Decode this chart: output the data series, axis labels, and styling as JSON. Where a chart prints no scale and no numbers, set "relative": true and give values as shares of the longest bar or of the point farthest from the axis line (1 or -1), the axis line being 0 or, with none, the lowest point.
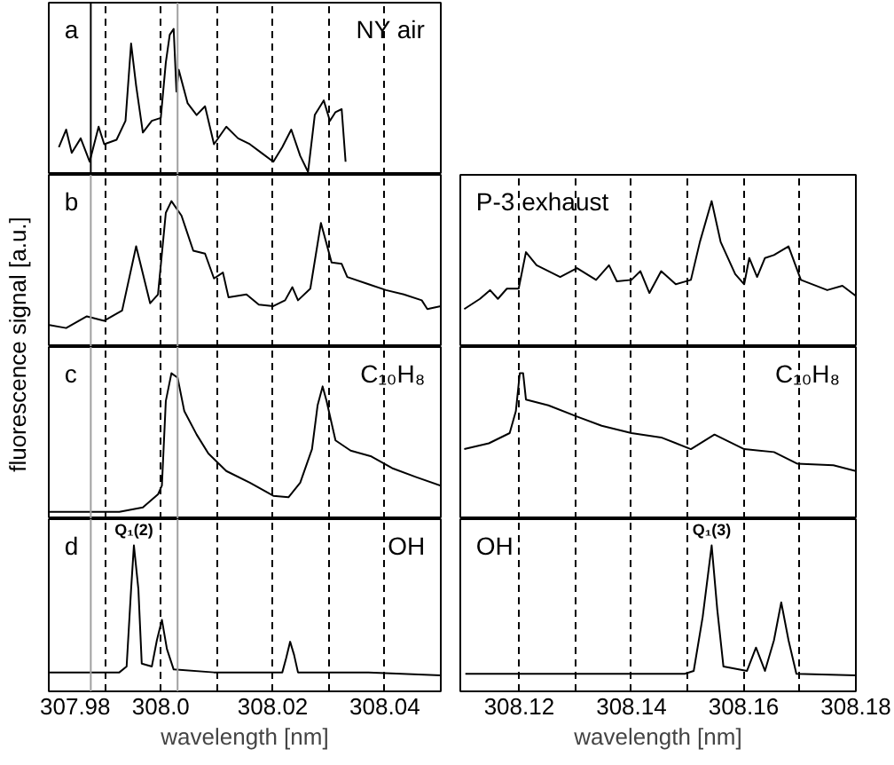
{
  "chart_data": [
    {
      "type": "line",
      "relative": true,
      "grid": "x",
      "tick_labels": false,
      "ylabel": "fluorescence signal [a.u.]",
      "annotations": [
        "a",
        "NY air"
      ],
      "xlim": [
        307.98,
        308.05
      ],
      "xticks": [
        307.98,
        {
          "value": 307.99,
          "label": null
        },
        308.0,
        {
          "value": 308.01,
          "label": null
        },
        308.02,
        {
          "value": 308.03,
          "label": null
        },
        308.04
      ],
      "ref_lines": [
        {
          "axis": "x",
          "value": 307.9875,
          "color": "#000000"
        },
        {
          "axis": "x",
          "value": 308.003,
          "color": "#a0a0a0"
        }
      ],
      "series": [
        {
          "color": "#000000",
          "x": [
            307.9818,
            307.9831,
            307.9841,
            307.9857,
            307.9873,
            307.9889,
            307.9899,
            307.9921,
            307.9937,
            307.9947,
            307.9956,
            307.9968,
            307.9984,
            308.0,
            308.0009,
            308.0016,
            308.0023,
            308.0028,
            308.0032,
            308.0048,
            308.0064,
            308.0079,
            308.0095,
            308.0117,
            308.0138,
            308.0159,
            308.018,
            308.0201,
            308.0217,
            308.0233,
            308.0249,
            308.0263,
            308.0275,
            308.0291,
            308.0302,
            308.0312,
            308.0323,
            308.033
          ],
          "values": [
            0.19,
            0.31,
            0.15,
            0.25,
            0.09,
            0.33,
            0.21,
            0.24,
            0.37,
            0.9,
            0.61,
            0.29,
            0.37,
            0.39,
            0.77,
            0.96,
            1.0,
            0.57,
            0.72,
            0.49,
            0.41,
            0.47,
            0.21,
            0.33,
            0.25,
            0.21,
            0.15,
            0.09,
            0.19,
            0.31,
            0.13,
            0.02,
            0.41,
            0.51,
            0.37,
            0.43,
            0.45,
            0.09
          ]
        }
      ]
    },
    {
      "type": "line",
      "relative": true,
      "grid": "x",
      "tick_labels": false,
      "annotations": [
        "b"
      ],
      "xlim": [
        307.98,
        308.05
      ],
      "xticks": [
        307.98,
        {
          "value": 307.99,
          "label": null
        },
        308.0,
        {
          "value": 308.01,
          "label": null
        },
        308.02,
        {
          "value": 308.03,
          "label": null
        },
        308.04
      ],
      "ref_lines": [
        {
          "axis": "x",
          "value": 307.9875,
          "color": "#a0a0a0"
        },
        {
          "axis": "x",
          "value": 308.003,
          "color": "#a0a0a0"
        }
      ],
      "series": [
        {
          "color": "#000000",
          "x": [
            307.9801,
            307.9831,
            307.9868,
            307.9899,
            307.9931,
            307.9956,
            307.9981,
            307.9995,
            308.0009,
            308.0019,
            308.0037,
            308.0058,
            308.0079,
            308.0095,
            308.0111,
            308.0121,
            308.0153,
            308.0175,
            308.0201,
            308.0222,
            308.0235,
            308.0245,
            308.0267,
            308.0286,
            308.0305,
            308.0323,
            308.0333,
            308.0371,
            308.0402,
            308.0434,
            308.0466,
            308.0476,
            308.05
          ],
          "values": [
            0.15,
            0.13,
            0.21,
            0.18,
            0.25,
            0.69,
            0.3,
            0.36,
            0.92,
            1.0,
            0.9,
            0.66,
            0.64,
            0.47,
            0.51,
            0.34,
            0.36,
            0.29,
            0.28,
            0.32,
            0.41,
            0.32,
            0.4,
            0.85,
            0.58,
            0.57,
            0.48,
            0.43,
            0.39,
            0.36,
            0.32,
            0.26,
            0.28
          ]
        }
      ]
    },
    {
      "type": "line",
      "relative": true,
      "grid": "x",
      "tick_labels": false,
      "annotations": [
        "c",
        "C₁₀H₈"
      ],
      "xlim": [
        307.98,
        308.05
      ],
      "xticks": [
        307.98,
        {
          "value": 307.99,
          "label": null
        },
        308.0,
        {
          "value": 308.01,
          "label": null
        },
        308.02,
        {
          "value": 308.03,
          "label": null
        },
        308.04
      ],
      "ref_lines": [
        {
          "axis": "x",
          "value": 307.9875,
          "color": "#a0a0a0"
        },
        {
          "axis": "x",
          "value": 308.003,
          "color": "#a0a0a0"
        }
      ],
      "series": [
        {
          "color": "#000000",
          "x": [
            307.9801,
            307.9926,
            307.9968,
            307.9995,
            308.0002,
            308.0009,
            308.0019,
            308.003,
            308.0042,
            308.0064,
            308.0085,
            308.0117,
            308.0159,
            308.0201,
            308.0228,
            308.0249,
            308.027,
            308.028,
            308.0289,
            308.0296,
            308.0312,
            308.0339,
            308.0376,
            308.0413,
            308.0455,
            308.05
          ],
          "values": [
            0.05,
            0.05,
            0.08,
            0.17,
            0.23,
            0.81,
            1.0,
            0.97,
            0.74,
            0.58,
            0.45,
            0.33,
            0.25,
            0.16,
            0.15,
            0.25,
            0.48,
            0.78,
            0.91,
            0.81,
            0.54,
            0.47,
            0.43,
            0.35,
            0.29,
            0.23
          ]
        }
      ]
    },
    {
      "type": "line",
      "relative": true,
      "grid": "x",
      "tick_labels": "x",
      "xlabel": "wavelength [nm]",
      "annotations": [
        "d",
        {
          "text": "Q₁(2)",
          "x": 307.9952,
          "y": 1.0
        },
        "OH"
      ],
      "xlim": [
        307.98,
        308.05
      ],
      "xticks": [
        307.98,
        {
          "value": 307.99,
          "label": null
        },
        {
          "value": 308.0,
          "label": "308.0"
        },
        {
          "value": 308.01,
          "label": null
        },
        308.02,
        {
          "value": 308.03,
          "label": null
        },
        308.04
      ],
      "ref_lines": [
        {
          "axis": "x",
          "value": 307.9875,
          "color": "#a0a0a0"
        },
        {
          "axis": "x",
          "value": 308.003,
          "color": "#a0a0a0"
        }
      ],
      "series": [
        {
          "color": "#000000",
          "x": [
            307.9801,
            307.9926,
            307.9939,
            307.9947,
            307.9952,
            307.996,
            307.9966,
            307.9984,
            307.9993,
            308.0002,
            308.0011,
            308.0023,
            308.0095,
            308.0217,
            308.0224,
            308.0231,
            308.0238,
            308.0245,
            308.0371,
            308.05
          ],
          "values": [
            0.13,
            0.13,
            0.17,
            0.7,
            1.0,
            0.7,
            0.19,
            0.17,
            0.35,
            0.49,
            0.29,
            0.15,
            0.13,
            0.13,
            0.23,
            0.34,
            0.25,
            0.13,
            0.13,
            0.11
          ]
        }
      ]
    },
    {
      "type": "line",
      "relative": true,
      "grid": "x",
      "tick_labels": false,
      "annotations": [
        "P-3 exhaust"
      ],
      "xlim": [
        308.1095,
        308.18
      ],
      "xticks": [
        308.12,
        {
          "value": 308.13,
          "label": null
        },
        308.14,
        {
          "value": 308.15,
          "label": null
        },
        308.16,
        {
          "value": 308.17,
          "label": null
        },
        308.18
      ],
      "series": [
        {
          "color": "#000000",
          "x": [
            308.1102,
            308.113,
            308.1148,
            308.1162,
            308.1178,
            308.1199,
            308.1212,
            308.1231,
            308.1273,
            308.1303,
            308.1337,
            308.136,
            308.1374,
            308.14,
            308.1416,
            308.1432,
            308.1453,
            308.1479,
            308.1506,
            308.1522,
            308.1543,
            308.1559,
            308.1585,
            308.1601,
            308.161,
            308.1624,
            308.1638,
            308.1654,
            308.168,
            308.1702,
            308.1749,
            308.1776,
            308.18
          ],
          "values": [
            0.26,
            0.33,
            0.39,
            0.33,
            0.4,
            0.4,
            0.65,
            0.56,
            0.48,
            0.54,
            0.46,
            0.56,
            0.45,
            0.46,
            0.52,
            0.37,
            0.52,
            0.43,
            0.46,
            0.72,
            1.0,
            0.72,
            0.5,
            0.43,
            0.61,
            0.48,
            0.61,
            0.63,
            0.69,
            0.46,
            0.39,
            0.42,
            0.35
          ]
        }
      ]
    },
    {
      "type": "line",
      "relative": true,
      "grid": "x",
      "tick_labels": false,
      "annotations": [
        "C₁₀H₈"
      ],
      "xlim": [
        308.1095,
        308.18
      ],
      "xticks": [
        308.12,
        {
          "value": 308.13,
          "label": null
        },
        308.14,
        {
          "value": 308.15,
          "label": null
        },
        308.16,
        {
          "value": 308.17,
          "label": null
        },
        308.18
      ],
      "series": [
        {
          "color": "#000000",
          "x": [
            308.1102,
            308.1146,
            308.1183,
            308.1194,
            308.1201,
            308.1207,
            308.1212,
            308.1252,
            308.1305,
            308.1347,
            308.14,
            308.1453,
            308.1506,
            308.1548,
            308.1601,
            308.1654,
            308.1696,
            308.176,
            308.18
          ],
          "values": [
            0.48,
            0.52,
            0.59,
            0.74,
            1.0,
            1.0,
            0.82,
            0.78,
            0.7,
            0.64,
            0.59,
            0.56,
            0.48,
            0.58,
            0.48,
            0.46,
            0.38,
            0.37,
            0.33
          ]
        }
      ]
    },
    {
      "type": "line",
      "relative": true,
      "grid": "x",
      "tick_labels": "x",
      "xlabel": "wavelength [nm]",
      "annotations": [
        "OH",
        {
          "text": "Q₁(3)",
          "x": 308.1543,
          "y": 1.0
        }
      ],
      "xlim": [
        308.1095,
        308.18
      ],
      "xticks": [
        308.12,
        {
          "value": 308.13,
          "label": null
        },
        308.14,
        {
          "value": 308.15,
          "label": null
        },
        308.16,
        {
          "value": 308.17,
          "label": null
        },
        308.18
      ],
      "series": [
        {
          "color": "#000000",
          "x": [
            308.1104,
            308.1495,
            308.1511,
            308.1527,
            308.1543,
            308.1553,
            308.1564,
            308.1606,
            308.1622,
            308.1638,
            308.1654,
            308.1667,
            308.168,
            308.1694,
            308.18
          ],
          "values": [
            0.12,
            0.12,
            0.14,
            0.51,
            1.0,
            0.56,
            0.17,
            0.14,
            0.3,
            0.14,
            0.35,
            0.61,
            0.35,
            0.12,
            0.11
          ]
        }
      ]
    }
  ]
}
